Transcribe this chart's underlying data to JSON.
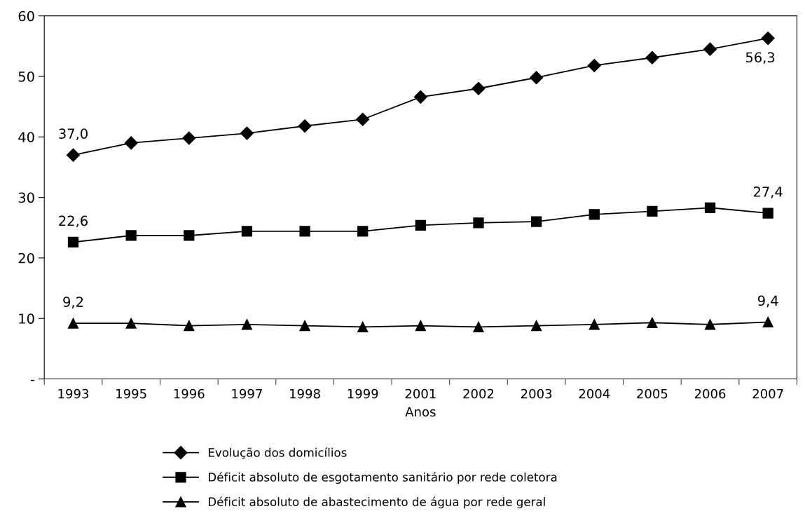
{
  "chart_data": {
    "type": "line",
    "xlabel": "Anos",
    "categories": [
      "1993",
      "1995",
      "1996",
      "1997",
      "1998",
      "1999",
      "2001",
      "2002",
      "2003",
      "2004",
      "2005",
      "2006",
      "2007"
    ],
    "series": [
      {
        "name": "Evolução dos domicílios",
        "color": "#000000",
        "marker": "diamond",
        "values": [
          37.0,
          39.0,
          39.8,
          40.6,
          41.8,
          42.9,
          46.6,
          48.0,
          49.8,
          51.8,
          53.1,
          54.5,
          56.3
        ],
        "value_labels": [
          "37,0",
          null,
          null,
          null,
          null,
          null,
          null,
          null,
          null,
          null,
          null,
          null,
          "56,3"
        ]
      },
      {
        "name": "Déficit absoluto de esgotamento sanitário por rede coletora",
        "color": "#000000",
        "marker": "square",
        "values": [
          22.6,
          23.7,
          23.7,
          24.4,
          24.4,
          24.4,
          25.4,
          25.8,
          26.0,
          27.2,
          27.7,
          28.3,
          27.4
        ],
        "value_labels": [
          "22,6",
          null,
          null,
          null,
          null,
          null,
          null,
          null,
          null,
          null,
          null,
          null,
          "27,4"
        ]
      },
      {
        "name": "Déficit absoluto de abastecimento de água por rede geral",
        "color": "#000000",
        "marker": "triangle",
        "values": [
          9.2,
          9.2,
          8.8,
          9.0,
          8.8,
          8.6,
          8.8,
          8.6,
          8.8,
          9.0,
          9.3,
          9.0,
          9.4
        ],
        "value_labels": [
          "9,2",
          null,
          null,
          null,
          null,
          null,
          null,
          null,
          null,
          null,
          null,
          null,
          "9,4"
        ]
      }
    ],
    "ylim": [
      0,
      60
    ],
    "yticks": [
      {
        "value": 0,
        "label": "-"
      },
      10,
      20,
      30,
      40,
      50,
      60
    ],
    "grid": false,
    "legend": "bottom",
    "line_style": "solid"
  }
}
